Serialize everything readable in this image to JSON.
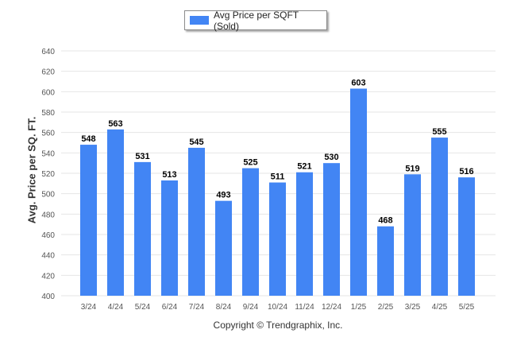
{
  "legend": {
    "label": "Avg Price per SQFT (Sold)"
  },
  "footer": {
    "copyright": "Copyright © Trendgraphix, Inc."
  },
  "colors": {
    "bar": "#4285f4",
    "grid": "#e6e6e6",
    "axis_text": "#555555",
    "bar_label": "#000000"
  },
  "chart_data": {
    "type": "bar",
    "title": "",
    "xlabel": "",
    "ylabel": "Avg. Price per SQ. FT.",
    "categories": [
      "3/24",
      "4/24",
      "5/24",
      "6/24",
      "7/24",
      "8/24",
      "9/24",
      "10/24",
      "11/24",
      "12/24",
      "1/25",
      "2/25",
      "3/25",
      "4/25",
      "5/25"
    ],
    "series": [
      {
        "name": "Avg Price per SQFT (Sold)",
        "values": [
          548,
          563,
          531,
          513,
          545,
          493,
          525,
          511,
          521,
          530,
          603,
          468,
          519,
          555,
          516
        ]
      }
    ],
    "ylim": [
      400,
      640
    ],
    "yticks": [
      400,
      420,
      440,
      460,
      480,
      500,
      520,
      540,
      560,
      580,
      600,
      620,
      640
    ],
    "grid": true,
    "legend_position": "top-center"
  }
}
